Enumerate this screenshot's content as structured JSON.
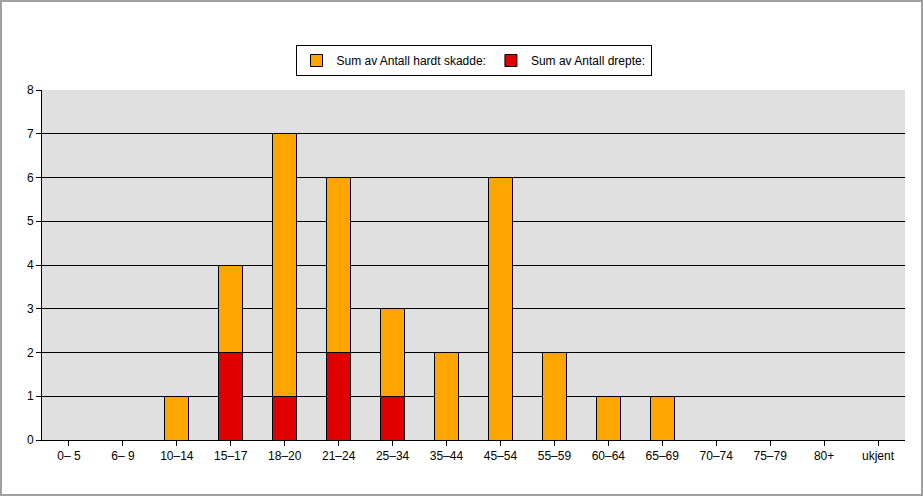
{
  "chart_data": {
    "type": "bar",
    "categories": [
      "0– 5",
      "6– 9",
      "10–14",
      "15–17",
      "18–20",
      "21–24",
      "25–34",
      "35–44",
      "45–54",
      "55–59",
      "60–64",
      "65–69",
      "70–74",
      "75–79",
      "80+",
      "ukjent"
    ],
    "series": [
      {
        "name": "Sum av Antall drepte:",
        "color": "#e00000",
        "values": [
          0,
          0,
          0,
          2,
          1,
          2,
          1,
          0,
          0,
          0,
          0,
          0,
          0,
          0,
          0,
          0
        ]
      },
      {
        "name": "Sum av Antall hardt skadde:",
        "color": "#ffa500",
        "values": [
          0,
          0,
          1,
          2,
          6,
          4,
          2,
          2,
          6,
          2,
          1,
          1,
          0,
          0,
          0,
          0
        ]
      }
    ],
    "stacked": true,
    "ylim": [
      0,
      8
    ],
    "yticks": [
      0,
      1,
      2,
      3,
      4,
      5,
      6,
      7,
      8
    ],
    "grid": true,
    "legend": "top"
  }
}
